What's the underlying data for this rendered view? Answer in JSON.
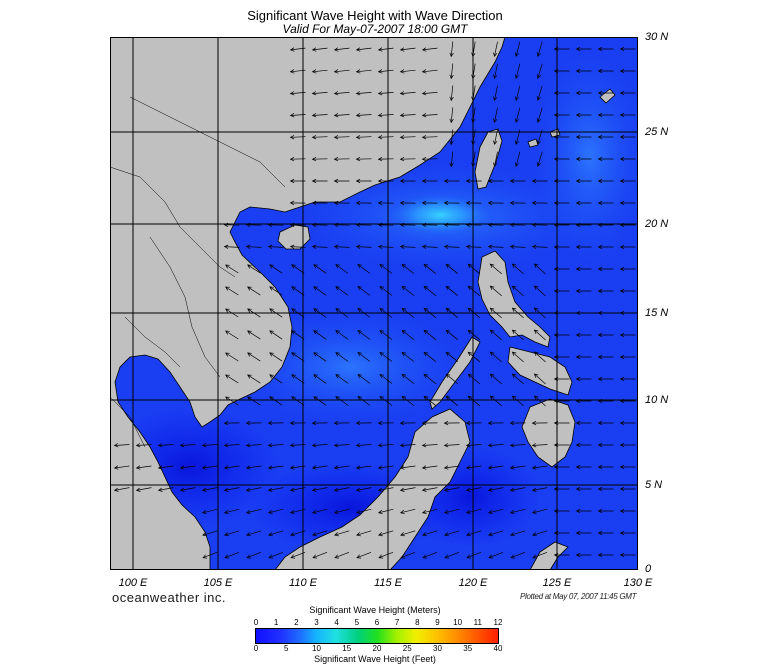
{
  "title": "Significant Wave Height with Wave Direction",
  "subtitle": "Valid For May-07-2007 18:00 GMT",
  "lat_labels": [
    "30 N",
    "25 N",
    "20 N",
    "15 N",
    "10 N",
    "5 N",
    "0"
  ],
  "lon_labels": [
    "100 E",
    "105 E",
    "110 E",
    "115 E",
    "120 E",
    "125 E",
    "130 E"
  ],
  "brand": "oceanweather inc.",
  "plotted": "Plotted at May 07, 2007 11:45 GMT",
  "colorbar": {
    "title_meters": "Significant Wave Height (Meters)",
    "title_feet": "Significant Wave Height (Feet)",
    "meters_ticks": [
      "0",
      "1",
      "2",
      "3",
      "4",
      "5",
      "6",
      "7",
      "8",
      "9",
      "10",
      "11",
      "12"
    ],
    "feet_ticks": [
      "0",
      "5",
      "10",
      "15",
      "20",
      "25",
      "30",
      "35",
      "40"
    ]
  },
  "colors": {
    "land": "#c0c0c0",
    "sea_deep": "#0a1cf0",
    "sea_mid": "#1a4ff5",
    "sea_light": "#2e8cff",
    "sea_peak": "#3ad2ff",
    "grid": "#000000",
    "arrow": "#000000"
  }
}
